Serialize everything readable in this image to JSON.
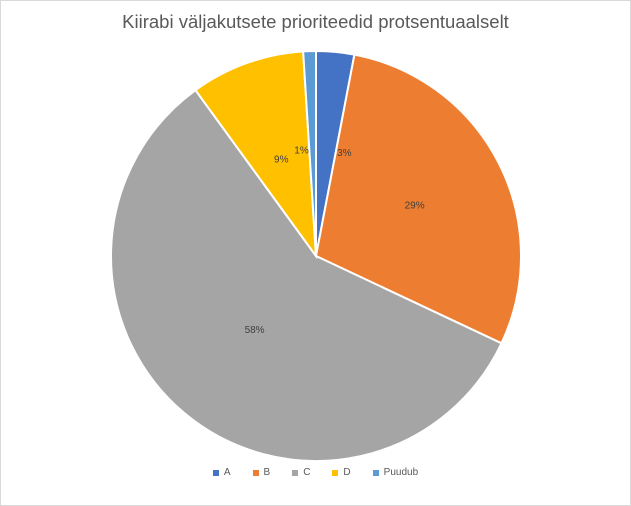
{
  "chart_data": {
    "type": "pie",
    "title": "Kiirabi väljakutsete prioriteedid protsentuaalselt",
    "categories": [
      "A",
      "B",
      "C",
      "D",
      "Puudub"
    ],
    "values": [
      3,
      29,
      58,
      9,
      1
    ],
    "labels": [
      "3%",
      "29%",
      "58%",
      "9%",
      "1%"
    ],
    "colors": [
      "#4472c4",
      "#ed7d31",
      "#a5a5a5",
      "#ffc000",
      "#5b9bd5"
    ],
    "legend_position": "bottom"
  }
}
